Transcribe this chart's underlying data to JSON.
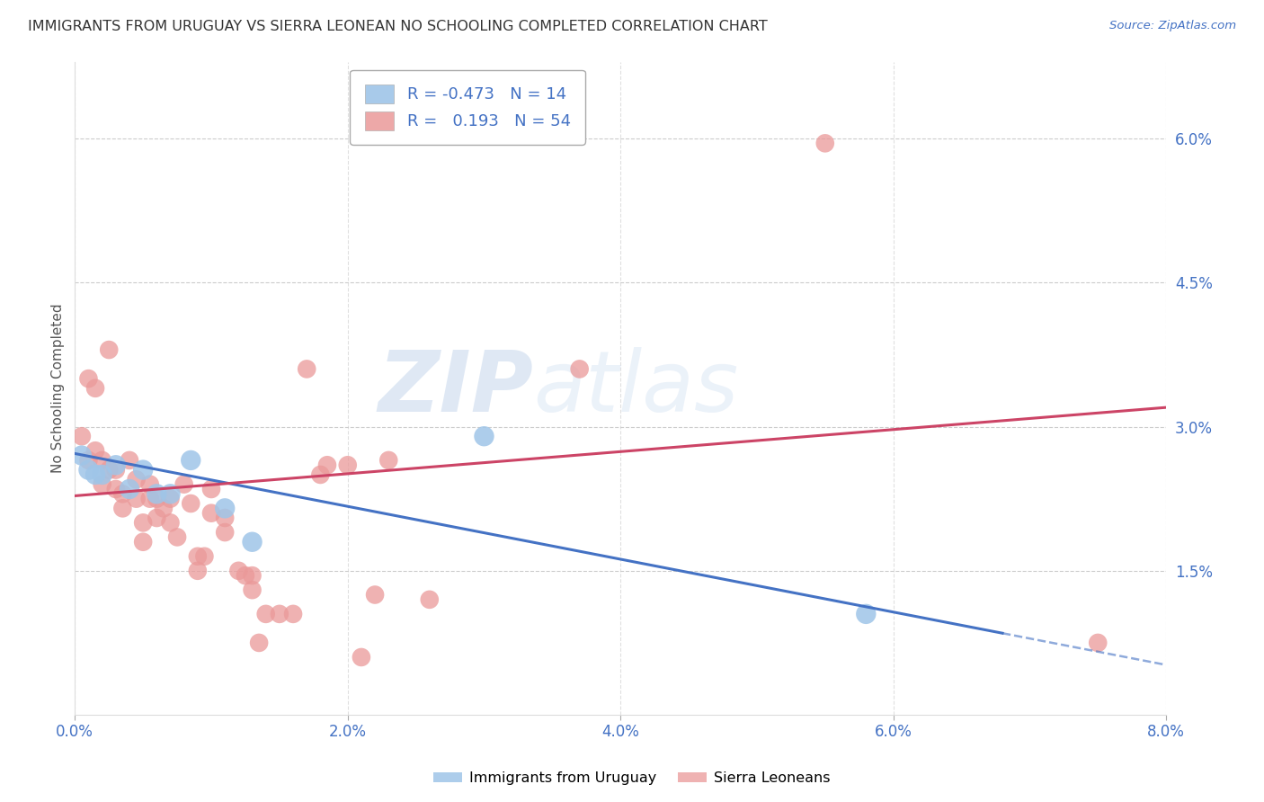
{
  "title": "IMMIGRANTS FROM URUGUAY VS SIERRA LEONEAN NO SCHOOLING COMPLETED CORRELATION CHART",
  "source": "Source: ZipAtlas.com",
  "ylabel": "No Schooling Completed",
  "x_tick_labels": [
    "0.0%",
    "2.0%",
    "4.0%",
    "6.0%",
    "8.0%"
  ],
  "x_tick_vals": [
    0.0,
    2.0,
    4.0,
    6.0,
    8.0
  ],
  "y_tick_labels_right": [
    "1.5%",
    "3.0%",
    "4.5%",
    "6.0%"
  ],
  "y_tick_vals_right": [
    1.5,
    3.0,
    4.5,
    6.0
  ],
  "xlim": [
    0.0,
    8.0
  ],
  "ylim": [
    0.0,
    6.8
  ],
  "legend_blue_R": "-0.473",
  "legend_blue_N": "14",
  "legend_pink_R": "0.193",
  "legend_pink_N": "54",
  "watermark_zip": "ZIP",
  "watermark_atlas": "atlas",
  "watermark_color_zip": "#b8cce8",
  "watermark_color_atlas": "#c8daf0",
  "background_color": "#ffffff",
  "blue_color": "#9fc5e8",
  "pink_color": "#ea9999",
  "blue_line_color": "#4472c4",
  "pink_line_color": "#cc4466",
  "axis_label_color": "#4472c4",
  "title_color": "#333333",
  "grid_color": "#cccccc",
  "uruguay_x": [
    0.05,
    0.1,
    0.15,
    0.2,
    0.3,
    0.4,
    0.5,
    0.6,
    0.7,
    0.85,
    1.1,
    1.3,
    3.0,
    5.8
  ],
  "uruguay_y": [
    2.7,
    2.55,
    2.5,
    2.5,
    2.6,
    2.35,
    2.55,
    2.3,
    2.3,
    2.65,
    2.15,
    1.8,
    2.9,
    1.05
  ],
  "sierra_x": [
    0.05,
    0.1,
    0.1,
    0.15,
    0.15,
    0.2,
    0.2,
    0.25,
    0.25,
    0.3,
    0.3,
    0.35,
    0.35,
    0.4,
    0.45,
    0.45,
    0.5,
    0.5,
    0.55,
    0.55,
    0.6,
    0.6,
    0.65,
    0.7,
    0.7,
    0.75,
    0.8,
    0.85,
    0.9,
    0.9,
    0.95,
    1.0,
    1.0,
    1.1,
    1.1,
    1.2,
    1.25,
    1.3,
    1.3,
    1.35,
    1.4,
    1.5,
    1.6,
    1.7,
    1.8,
    1.85,
    2.0,
    2.1,
    2.2,
    2.3,
    2.6,
    3.7,
    5.5,
    7.5
  ],
  "sierra_y": [
    2.9,
    2.65,
    3.5,
    3.4,
    2.75,
    2.65,
    2.4,
    3.8,
    2.55,
    2.55,
    2.35,
    2.3,
    2.15,
    2.65,
    2.45,
    2.25,
    2.0,
    1.8,
    2.4,
    2.25,
    2.25,
    2.05,
    2.15,
    2.25,
    2.0,
    1.85,
    2.4,
    2.2,
    1.65,
    1.5,
    1.65,
    2.35,
    2.1,
    2.05,
    1.9,
    1.5,
    1.45,
    1.45,
    1.3,
    0.75,
    1.05,
    1.05,
    1.05,
    3.6,
    2.5,
    2.6,
    2.6,
    0.6,
    1.25,
    2.65,
    1.2,
    3.6,
    5.95,
    0.75
  ],
  "blue_line_x0": 0.0,
  "blue_line_y0": 2.72,
  "blue_line_x1": 6.8,
  "blue_line_y1": 0.85,
  "blue_dash_x0": 6.8,
  "blue_dash_y0": 0.85,
  "blue_dash_x1": 8.0,
  "blue_dash_y1": 0.52,
  "pink_line_x0": 0.0,
  "pink_line_y0": 2.28,
  "pink_line_x1": 8.0,
  "pink_line_y1": 3.2
}
